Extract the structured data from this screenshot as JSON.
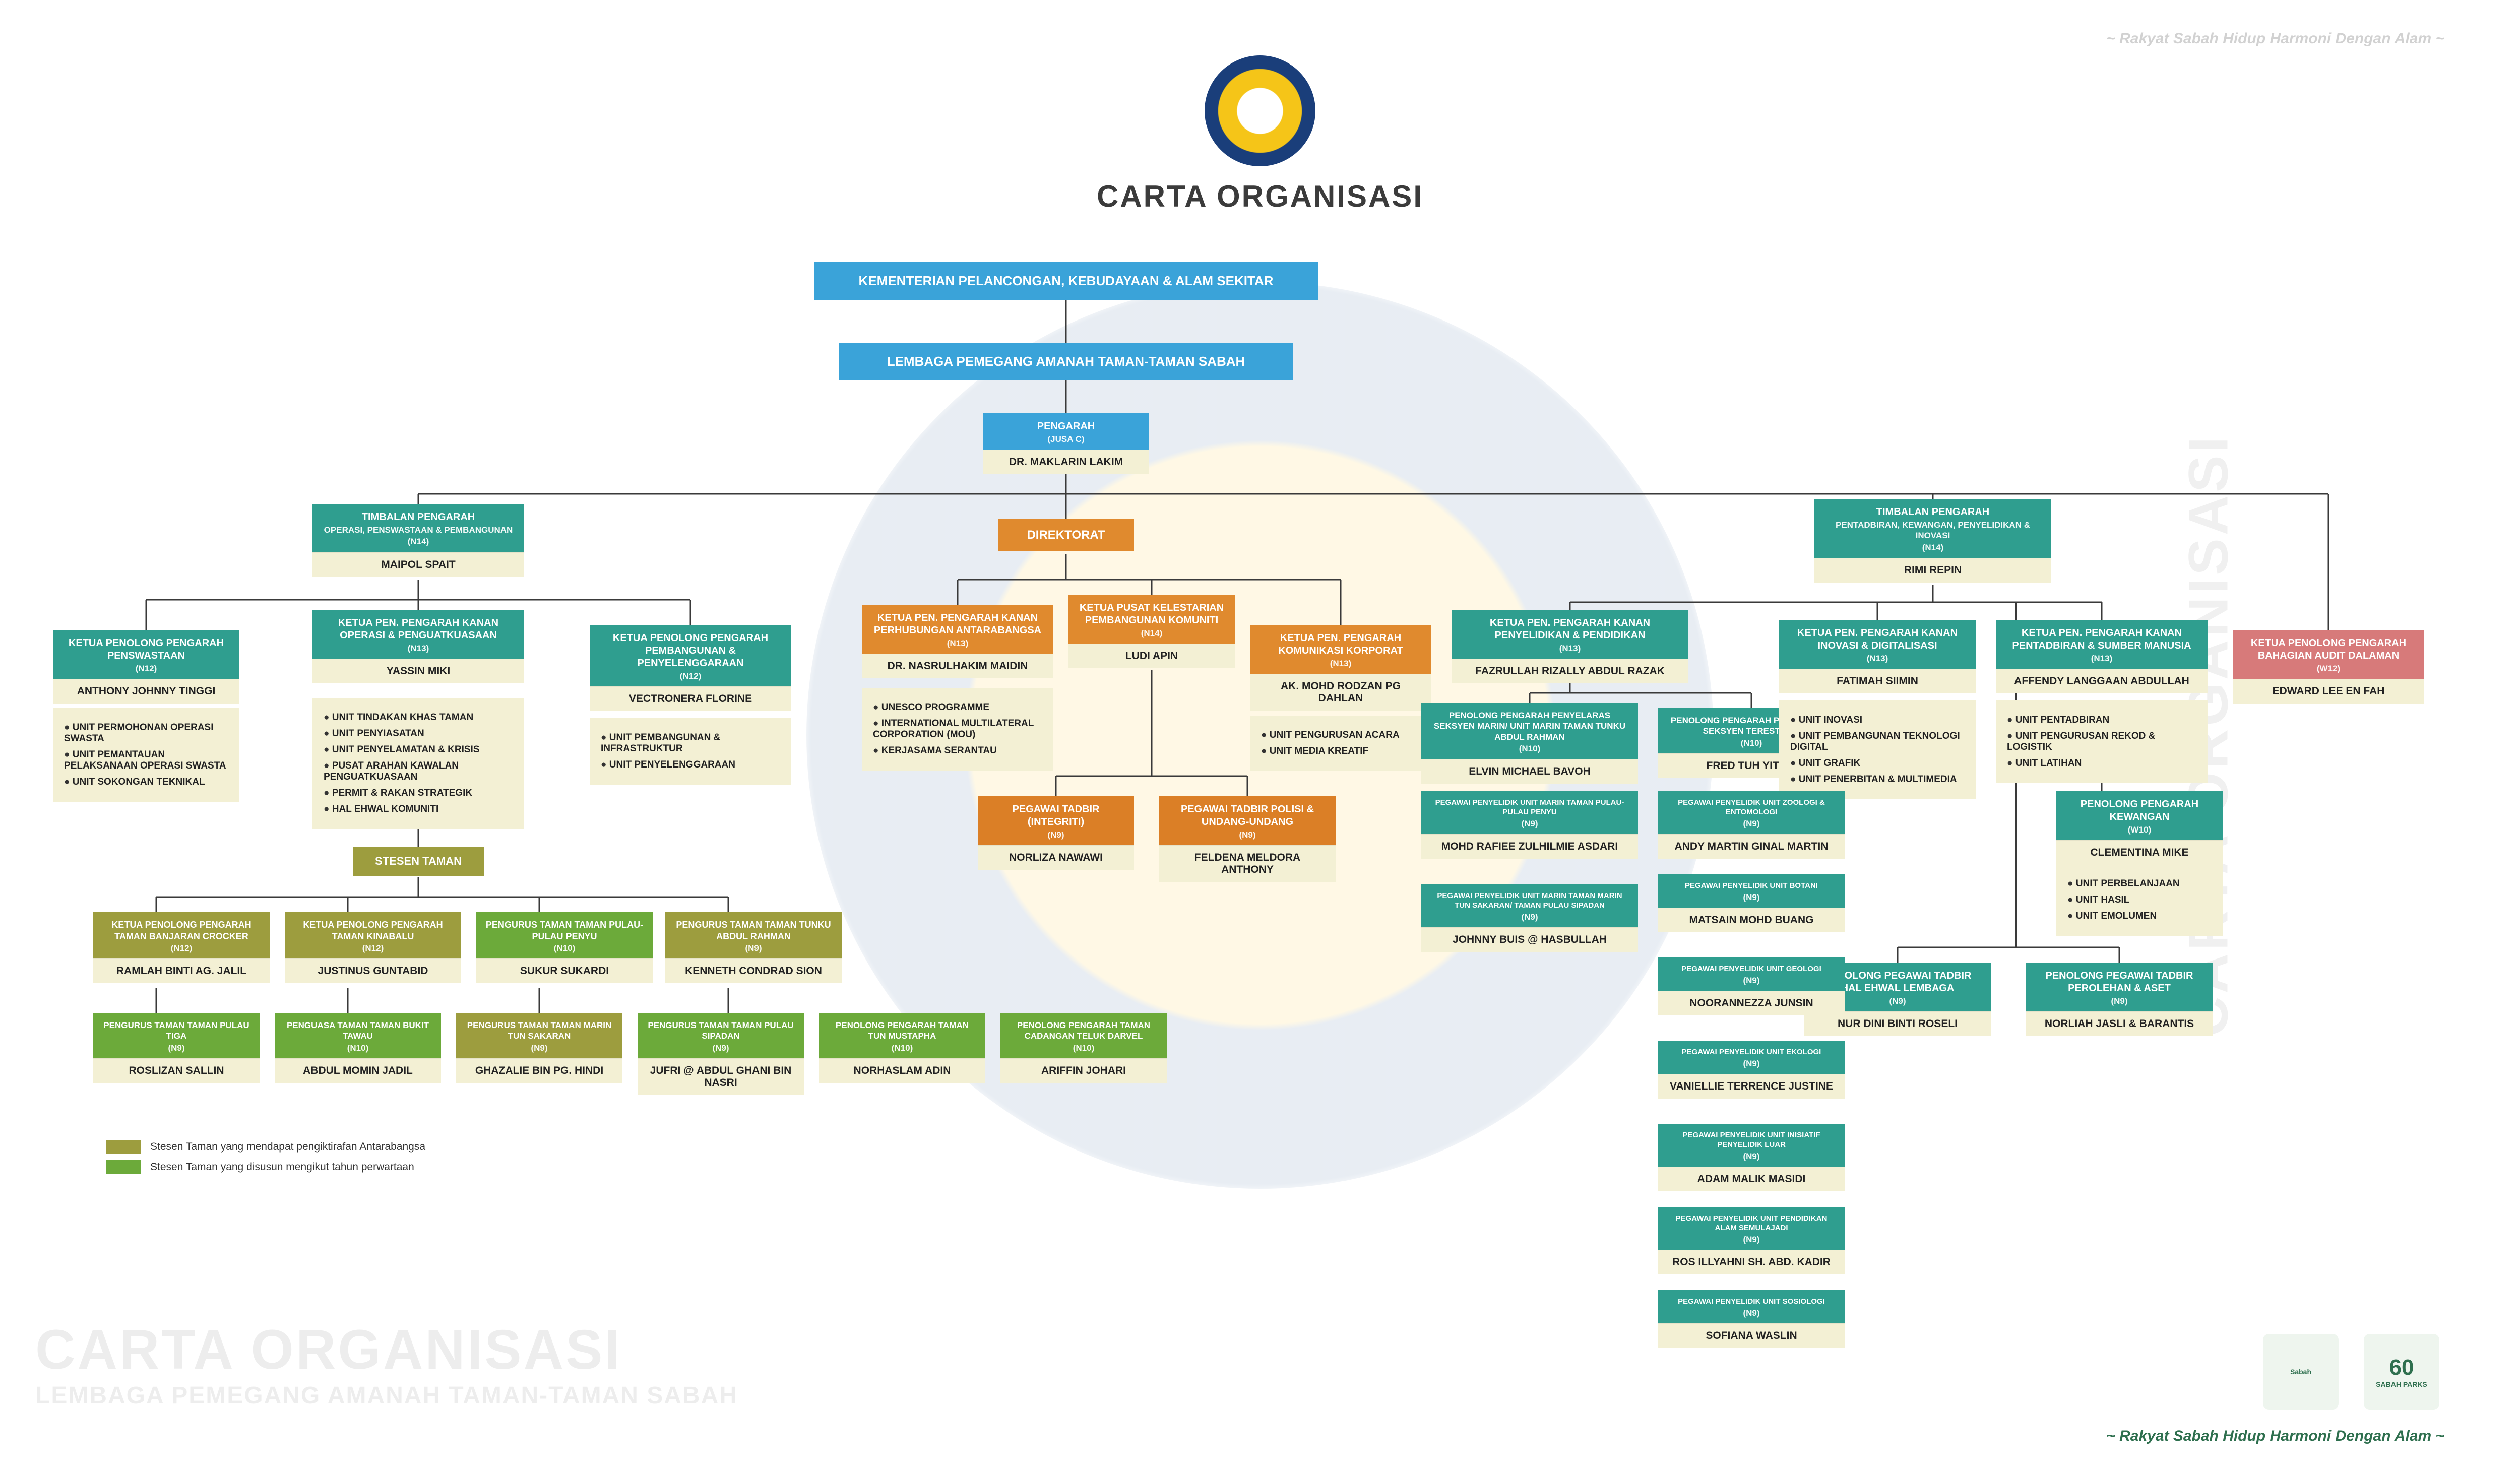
{
  "meta": {
    "title": "CARTA ORGANISASI",
    "tagline": "~ Rakyat Sabah Hidup Harmoni Dengan Alam ~",
    "watermark_side": "CARTA ORGANISASI",
    "watermark_bottom1": "CARTA ORGANISASI",
    "watermark_bottom2": "LEMBAGA PEMEGANG AMANAH TAMAN-TAMAN SABAH",
    "footer_logo1": "Sabah",
    "footer_logo2_num": "60",
    "footer_logo2_txt": "SABAH PARKS"
  },
  "colors": {
    "blue": "#3aa3d9",
    "teal": "#2f9e8f",
    "olive": "#9d9d3e",
    "orange": "#e08a2e",
    "green": "#6caa3a",
    "red": "#d77a7a",
    "cream": "#f3f0d4",
    "line": "#3a3a3a",
    "bg": "#ffffff"
  },
  "bars": {
    "ministry": "KEMENTERIAN PELANCONGAN, KEBUDAYAAN & ALAM SEKITAR",
    "board": "LEMBAGA PEMEGANG AMANAH  TAMAN-TAMAN SABAH",
    "direktorat": "DIREKTORAT",
    "stesen": "STESEN  TAMAN"
  },
  "pengarah": {
    "title": "PENGARAH",
    "grade": "(JUSA C)",
    "name": "DR. MAKLARIN LAKIM"
  },
  "left": {
    "timbalan": {
      "title": "TIMBALAN PENGARAH",
      "sub": "OPERASI, PENSWASTAAN & PEMBANGUNAN",
      "grade": "(N14)",
      "name": "MAIPOL SPAIT"
    },
    "kpp_pens": {
      "title": "KETUA PENOLONG PENGARAH PENSWASTAAN",
      "grade": "(N12)",
      "name": "ANTHONY JOHNNY TINGGI"
    },
    "kpp_pens_units": [
      "UNIT PERMOHONAN OPERASI SWASTA",
      "UNIT PEMANTAUAN PELAKSANAAN OPERASI SWASTA",
      "UNIT SOKONGAN TEKNIKAL"
    ],
    "kpk_ops": {
      "title": "KETUA PEN. PENGARAH KANAN OPERASI & PENGUATKUASAAN",
      "grade": "(N13)",
      "name": "YASSIN MIKI"
    },
    "kpk_ops_units": [
      "UNIT TINDAKAN KHAS TAMAN",
      "UNIT PENYIASATAN",
      "UNIT PENYELAMATAN & KRISIS",
      "PUSAT ARAHAN KAWALAN PENGUATKUASAAN",
      "PERMIT & RAKAN STRATEGIK",
      "HAL EHWAL KOMUNITI"
    ],
    "kpp_pemb": {
      "title": "KETUA PENOLONG PENGARAH PEMBANGUNAN & PENYELENGGARAAN",
      "grade": "(N12)",
      "name": "VECTRONERA FLORINE"
    },
    "kpp_pemb_units": [
      "UNIT PEMBANGUNAN & INFRASTRUKTUR",
      "UNIT PENYELENGGARAAN"
    ]
  },
  "stesen_row1": [
    {
      "c": "olive",
      "title": "KETUA PENOLONG PENGARAH TAMAN BANJARAN CROCKER",
      "grade": "(N12)",
      "name": "RAMLAH BINTI AG. JALIL"
    },
    {
      "c": "olive",
      "title": "KETUA PENOLONG PENGARAH TAMAN KINABALU",
      "grade": "(N12)",
      "name": "JUSTINUS GUNTABID"
    },
    {
      "c": "green",
      "title": "PENGURUS TAMAN TAMAN PULAU-PULAU PENYU",
      "grade": "(N10)",
      "name": "SUKUR SUKARDI"
    },
    {
      "c": "olive",
      "title": "PENGURUS TAMAN TAMAN TUNKU ABDUL RAHMAN",
      "grade": "(N9)",
      "name": "KENNETH CONDRAD SION"
    }
  ],
  "stesen_row2": [
    {
      "c": "green",
      "title": "PENGURUS TAMAN TAMAN PULAU TIGA",
      "grade": "(N9)",
      "name": "ROSLIZAN SALLIN"
    },
    {
      "c": "green",
      "title": "PENGUASA TAMAN TAMAN BUKIT TAWAU",
      "grade": "(N10)",
      "name": "ABDUL MOMIN JADIL"
    },
    {
      "c": "olive",
      "title": "PENGURUS TAMAN TAMAN MARIN TUN SAKARAN",
      "grade": "(N9)",
      "name": "GHAZALIE BIN PG. HINDI"
    },
    {
      "c": "green",
      "title": "PENGURUS TAMAN TAMAN PULAU SIPADAN",
      "grade": "(N9)",
      "name": "JUFRI @ ABDUL GHANI BIN NASRI"
    },
    {
      "c": "green",
      "title": "PENOLONG PENGARAH TAMAN TUN MUSTAPHA",
      "grade": "(N10)",
      "name": "NORHASLAM ADIN"
    },
    {
      "c": "green",
      "title": "PENOLONG PENGARAH TAMAN CADANGAN TELUK DARVEL",
      "grade": "(N10)",
      "name": "ARIFFIN JOHARI"
    }
  ],
  "center": {
    "kpk_hub": {
      "title": "KETUA PEN. PENGARAH KANAN PERHUBUNGAN ANTARABANGSA",
      "grade": "(N13)",
      "name": "DR. NASRULHAKIM MAIDIN"
    },
    "kpk_hub_units": [
      "UNESCO PROGRAMME",
      "INTERNATIONAL MULTILATERAL CORPORATION (MOU)",
      "KERJASAMA SERANTAU"
    ],
    "kelestarian": {
      "title": "KETUA PUSAT KELESTARIAN PEMBANGUNAN KOMUNITI",
      "grade": "(N14)",
      "name": "LUDI APIN"
    },
    "komunikasi": {
      "title": "KETUA PEN. PENGARAH KOMUNIKASI KORPORAT",
      "grade": "(N13)",
      "name": "AK. MOHD RODZAN PG DAHLAN"
    },
    "komunikasi_units": [
      "UNIT PENGURUSAN ACARA",
      "UNIT MEDIA KREATIF"
    ],
    "integriti": {
      "title": "PEGAWAI TADBIR (INTEGRITI)",
      "grade": "(N9)",
      "name": "NORLIZA NAWAWI"
    },
    "polisi": {
      "title": "PEGAWAI TADBIR POLISI & UNDANG-UNDANG",
      "grade": "(N9)",
      "name": "FELDENA MELDORA ANTHONY"
    }
  },
  "research": {
    "kpk": {
      "title": "KETUA PEN. PENGARAH KANAN PENYELIDIKAN & PENDIDIKAN",
      "grade": "(N13)",
      "name": "FAZRULLAH RIZALLY ABDUL RAZAK"
    },
    "marin": {
      "title": "PENOLONG PENGARAH PENYELARAS SEKSYEN MARIN/ UNIT MARIN TAMAN TUNKU ABDUL RAHMAN",
      "grade": "(N10)",
      "name": "ELVIN MICHAEL BAVOH"
    },
    "marin_sub": [
      {
        "title": "PEGAWAI PENYELIDIK UNIT MARIN TAMAN PULAU-PULAU PENYU",
        "grade": "(N9)",
        "name": "MOHD RAFIEE ZULHILMIE ASDARI"
      },
      {
        "title": "PEGAWAI PENYELIDIK UNIT MARIN TAMAN MARIN TUN SAKARAN/ TAMAN PULAU SIPADAN",
        "grade": "(N9)",
        "name": "JOHNNY BUIS @ HASBULLAH"
      }
    ],
    "terestrial": {
      "title": "PENOLONG PENGARAH PENYELARAS SEKSYEN TERESTRIAL",
      "grade": "(N10)",
      "name": "FRED TUH YIT YU"
    },
    "ter_sub": [
      {
        "title": "PEGAWAI PENYELIDIK UNIT ZOOLOGI & ENTOMOLOGI",
        "grade": "(N9)",
        "name": "ANDY MARTIN GINAL MARTIN"
      },
      {
        "title": "PEGAWAI PENYELIDIK UNIT BOTANI",
        "grade": "(N9)",
        "name": "MATSAIN MOHD BUANG"
      },
      {
        "title": "PEGAWAI PENYELIDIK UNIT GEOLOGI",
        "grade": "(N9)",
        "name": "NOORANNEZZA JUNSIN"
      },
      {
        "title": "PEGAWAI PENYELIDIK UNIT EKOLOGI",
        "grade": "(N9)",
        "name": "VANIELLIE TERRENCE JUSTINE"
      },
      {
        "title": "PEGAWAI PENYELIDIK UNIT INISIATIF PENYELIDIK LUAR",
        "grade": "(N9)",
        "name": "ADAM MALIK MASIDI"
      },
      {
        "title": "PEGAWAI PENYELIDIK UNIT PENDIDIKAN ALAM SEMULAJADI",
        "grade": "(N9)",
        "name": "ROS ILLYAHNI SH. ABD. KADIR"
      },
      {
        "title": "PEGAWAI PENYELIDIK UNIT SOSIOLOGI",
        "grade": "(N9)",
        "name": "SOFIANA WASLIN"
      }
    ]
  },
  "right": {
    "timbalan": {
      "title": "TIMBALAN PENGARAH",
      "sub": "PENTADBIRAN, KEWANGAN, PENYELIDIKAN & INOVASI",
      "grade": "(N14)",
      "name": "RIMI REPIN"
    },
    "inov": {
      "title": "KETUA PEN. PENGARAH KANAN INOVASI & DIGITALISASI",
      "grade": "(N13)",
      "name": "FATIMAH SIIMIN"
    },
    "inov_units": [
      "UNIT INOVASI",
      "UNIT PEMBANGUNAN TEKNOLOGI DIGITAL",
      "UNIT GRAFIK",
      "UNIT PENERBITAN & MULTIMEDIA"
    ],
    "ptsm": {
      "title": "KETUA PEN. PENGARAH KANAN PENTADBIRAN & SUMBER MANUSIA",
      "grade": "(N13)",
      "name": "AFFENDY LANGGAAN ABDULLAH"
    },
    "ptsm_units": [
      "UNIT PENTADBIRAN",
      "UNIT PENGURUSAN REKOD & LOGISTIK",
      "UNIT LATIHAN"
    ],
    "audit": {
      "title": "KETUA PENOLONG PENGARAH BAHAGIAN AUDIT DALAMAN",
      "grade": "(W12)",
      "name": "EDWARD LEE EN FAH"
    },
    "kewangan": {
      "title": "PENOLONG PENGARAH KEWANGAN",
      "grade": "(W10)",
      "name": "CLEMENTINA MIKE"
    },
    "kewangan_units": [
      "UNIT PERBELANJAAN",
      "UNIT HASIL",
      "UNIT EMOLUMEN"
    ],
    "hel": {
      "title": "PENOLONG PEGAWAI TADBIR HAL EHWAL LEMBAGA",
      "grade": "(N9)",
      "name": "NUR DINI BINTI ROSELI"
    },
    "aset": {
      "title": "PENOLONG PEGAWAI TADBIR PEROLEHAN & ASET",
      "grade": "(N9)",
      "name": "NORLIAH JASLI & BARANTIS"
    }
  },
  "legend": {
    "olive": "Stesen Taman yang mendapat pengiktirafan Antarabangsa",
    "green": "Stesen Taman yang disusun mengikut tahun perwartaan"
  }
}
